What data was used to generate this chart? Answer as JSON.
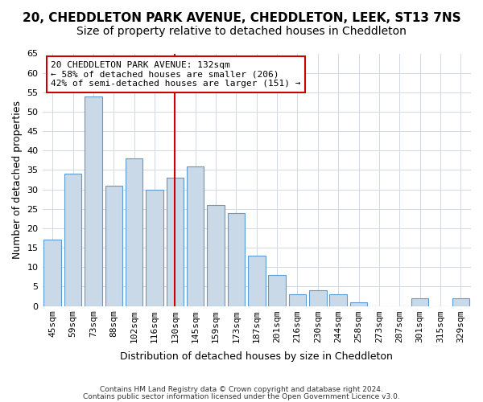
{
  "title": "20, CHEDDLETON PARK AVENUE, CHEDDLETON, LEEK, ST13 7NS",
  "subtitle": "Size of property relative to detached houses in Cheddleton",
  "xlabel": "Distribution of detached houses by size in Cheddleton",
  "ylabel": "Number of detached properties",
  "categories": [
    "45sqm",
    "59sqm",
    "73sqm",
    "88sqm",
    "102sqm",
    "116sqm",
    "130sqm",
    "145sqm",
    "159sqm",
    "173sqm",
    "187sqm",
    "201sqm",
    "216sqm",
    "230sqm",
    "244sqm",
    "258sqm",
    "273sqm",
    "287sqm",
    "301sqm",
    "315sqm",
    "329sqm"
  ],
  "values": [
    17,
    34,
    54,
    31,
    38,
    30,
    33,
    36,
    26,
    24,
    13,
    8,
    3,
    4,
    3,
    1,
    0,
    0,
    2,
    0,
    2
  ],
  "bar_color": "#c9d9e8",
  "bar_edge_color": "#5b9bd5",
  "red_line_index": 6,
  "red_line_color": "#cc0000",
  "annotation_line1": "20 CHEDDLETON PARK AVENUE: 132sqm",
  "annotation_line2": "← 58% of detached houses are smaller (206)",
  "annotation_line3": "42% of semi-detached houses are larger (151) →",
  "annotation_box_edge": "#cc0000",
  "ylim": [
    0,
    65
  ],
  "yticks": [
    0,
    5,
    10,
    15,
    20,
    25,
    30,
    35,
    40,
    45,
    50,
    55,
    60,
    65
  ],
  "footnote1": "Contains HM Land Registry data © Crown copyright and database right 2024.",
  "footnote2": "Contains public sector information licensed under the Open Government Licence v3.0.",
  "bg_color": "#ffffff",
  "grid_color": "#d0d8e8",
  "title_fontsize": 11,
  "subtitle_fontsize": 10,
  "axis_label_fontsize": 9,
  "tick_fontsize": 8
}
